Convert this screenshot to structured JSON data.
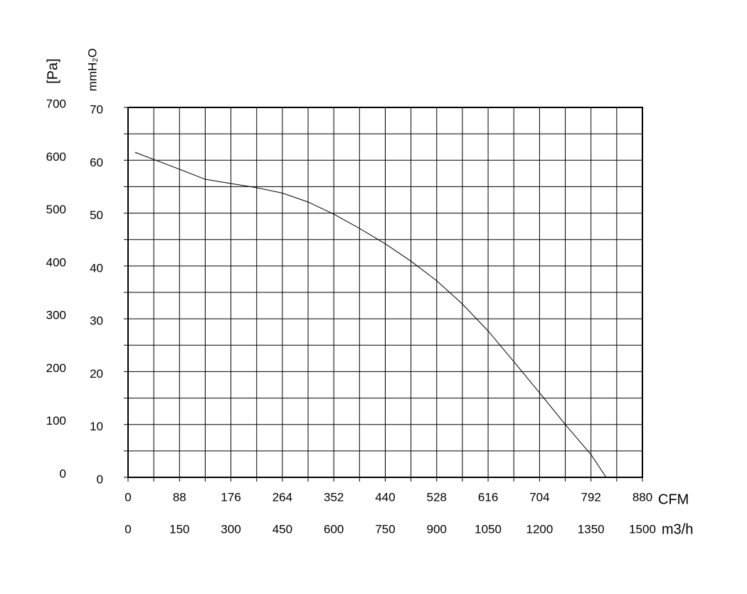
{
  "chart_data": {
    "type": "line",
    "y_label": "[Pa]",
    "y2_label": "mmH₂O",
    "x_label": "CFM",
    "x2_label": "m3/h",
    "xlim": [
      0,
      880
    ],
    "xticks": [
      0,
      88,
      176,
      264,
      352,
      440,
      528,
      616,
      704,
      792,
      880
    ],
    "x2lim": [
      0,
      1500
    ],
    "x2ticks": [
      0,
      150,
      300,
      450,
      600,
      750,
      900,
      1050,
      1200,
      1350,
      1500
    ],
    "ylim": [
      0,
      700
    ],
    "yticks": [
      0,
      100,
      200,
      300,
      400,
      500,
      600,
      700
    ],
    "y2lim": [
      0,
      70
    ],
    "y2ticks": [
      0,
      10,
      20,
      30,
      40,
      50,
      60,
      70
    ],
    "grid": true,
    "series": [
      {
        "color": "#000000",
        "x": [
          12,
          88,
          132,
          176,
          220,
          264,
          308,
          352,
          396,
          440,
          484,
          528,
          572,
          616,
          660,
          704,
          748,
          792,
          818
        ],
        "values": [
          615,
          583,
          564,
          556,
          548,
          538,
          521,
          498,
          471,
          442,
          409,
          372,
          328,
          277,
          219,
          160,
          100,
          43,
          0
        ]
      }
    ]
  }
}
